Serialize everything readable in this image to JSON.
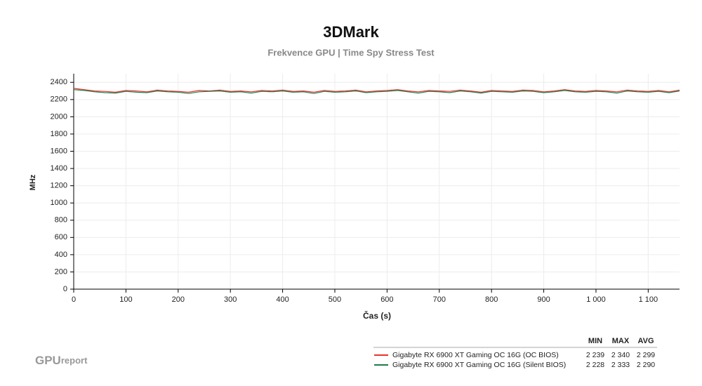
{
  "chart_data": {
    "type": "line",
    "title": "3DMark",
    "subtitle": "Frekvence GPU | Time Spy Stress Test",
    "x_label": "Čas (s)",
    "y_label": "MHz",
    "x": [
      0,
      20,
      40,
      60,
      80,
      100,
      120,
      140,
      160,
      180,
      200,
      220,
      240,
      260,
      280,
      300,
      320,
      340,
      360,
      380,
      400,
      420,
      440,
      460,
      480,
      500,
      520,
      540,
      560,
      580,
      600,
      620,
      640,
      660,
      680,
      700,
      720,
      740,
      760,
      780,
      800,
      820,
      840,
      860,
      880,
      900,
      920,
      940,
      960,
      980,
      1000,
      1020,
      1040,
      1060,
      1080,
      1100,
      1120,
      1140,
      1160
    ],
    "series": [
      {
        "name": "Gigabyte RX 6900 XT Gaming OC 16G (OC BIOS)",
        "color": "#e8322b",
        "values": [
          2330,
          2315,
          2300,
          2295,
          2285,
          2305,
          2300,
          2290,
          2310,
          2300,
          2295,
          2285,
          2305,
          2300,
          2310,
          2295,
          2300,
          2290,
          2305,
          2300,
          2310,
          2295,
          2300,
          2285,
          2305,
          2295,
          2300,
          2310,
          2290,
          2300,
          2305,
          2315,
          2300,
          2290,
          2305,
          2300,
          2295,
          2310,
          2300,
          2285,
          2305,
          2300,
          2295,
          2310,
          2305,
          2290,
          2300,
          2315,
          2300,
          2295,
          2305,
          2300,
          2290,
          2310,
          2300,
          2295,
          2305,
          2290,
          2310
        ],
        "stats": [
          "2 239",
          "2 340",
          "2 299"
        ]
      },
      {
        "name": "Gigabyte RX 6900 XT Gaming OC 16G (Silent BIOS)",
        "color": "#1f7a4a",
        "values": [
          2315,
          2305,
          2290,
          2280,
          2275,
          2295,
          2285,
          2280,
          2300,
          2290,
          2285,
          2270,
          2290,
          2295,
          2300,
          2285,
          2290,
          2275,
          2295,
          2290,
          2300,
          2285,
          2290,
          2270,
          2295,
          2285,
          2290,
          2300,
          2280,
          2290,
          2295,
          2305,
          2290,
          2275,
          2295,
          2290,
          2280,
          2300,
          2290,
          2275,
          2295,
          2290,
          2285,
          2300,
          2295,
          2280,
          2290,
          2305,
          2290,
          2285,
          2295,
          2290,
          2275,
          2300,
          2290,
          2285,
          2295,
          2280,
          2300
        ],
        "stats": [
          "2 228",
          "2 333",
          "2 290"
        ]
      }
    ],
    "stats_header": [
      "MIN",
      "MAX",
      "AVG"
    ],
    "xlim": [
      0,
      1160
    ],
    "xticks": [
      0,
      100,
      200,
      300,
      400,
      500,
      600,
      700,
      800,
      900,
      {
        "value": 1000,
        "label": "1 000"
      },
      {
        "value": 1100,
        "label": "1 100"
      }
    ],
    "ylim": [
      0,
      2500
    ],
    "yticks": [
      0,
      200,
      400,
      600,
      800,
      1000,
      1200,
      1400,
      1600,
      1800,
      2000,
      2200,
      2400
    ],
    "grid": true,
    "logo": [
      "GPU",
      "report"
    ]
  }
}
